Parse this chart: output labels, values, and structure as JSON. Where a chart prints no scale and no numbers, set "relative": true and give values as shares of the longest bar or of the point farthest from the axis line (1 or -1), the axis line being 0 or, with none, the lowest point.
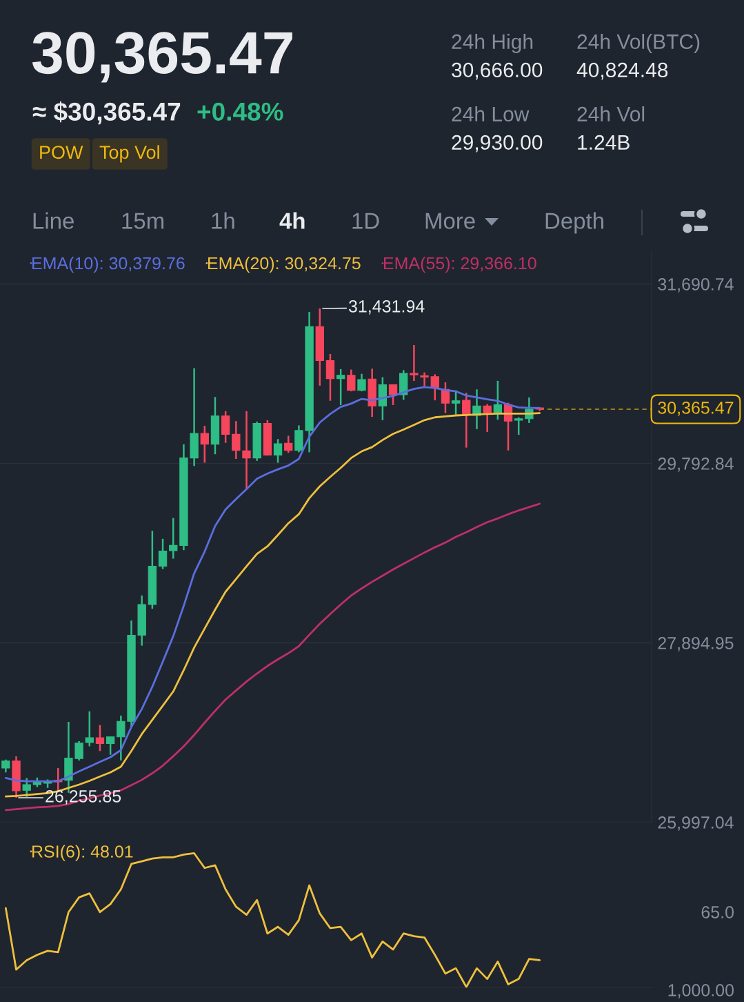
{
  "chart_data": [
    {
      "type": "other",
      "title": "30,365.47",
      "annotations": [
        "≈ $30,365.47",
        "+0.48%",
        "POW",
        "Top Vol",
        "24h High",
        "30,666.00",
        "24h Vol(BTC)",
        "40,824.48",
        "24h Low",
        "29,930.00",
        "24h Vol",
        "1.24B",
        "Line",
        "15m",
        "1h",
        "4h",
        "1D",
        "More",
        "Depth"
      ]
    },
    {
      "type": "candlestick",
      "categories": [
        null,
        null,
        null,
        null,
        null,
        null,
        null,
        null,
        null,
        null,
        null,
        null,
        null,
        null,
        null,
        null,
        null,
        null,
        null,
        null,
        null,
        null,
        null,
        null,
        null,
        null,
        null,
        null,
        null,
        null,
        null,
        null,
        null,
        null,
        null,
        null,
        null,
        null,
        null,
        null,
        null,
        null,
        null,
        null,
        null,
        null,
        null,
        null,
        null,
        null,
        null,
        null
      ],
      "ohlc": [
        [
          26570,
          26660,
          26525,
          26645
        ],
        [
          26645,
          26695,
          26255.85,
          26330
        ],
        [
          26335,
          26465,
          26265,
          26395
        ],
        [
          26395,
          26470,
          26370,
          26420
        ],
        [
          26410,
          26450,
          26360,
          26420
        ],
        [
          26440,
          26570,
          26325,
          26425
        ],
        [
          26440,
          27060,
          26310,
          26675
        ],
        [
          26670,
          26855,
          26650,
          26835
        ],
        [
          26840,
          27170,
          26800,
          26890
        ],
        [
          26890,
          27025,
          26750,
          26830
        ],
        [
          26830,
          26900,
          26710,
          26900
        ],
        [
          26900,
          27125,
          26650,
          27065
        ],
        [
          27065,
          28130,
          27005,
          27975
        ],
        [
          27975,
          28395,
          27865,
          28300
        ],
        [
          28300,
          29080,
          28255,
          28705
        ],
        [
          28705,
          28995,
          28675,
          28865
        ],
        [
          28870,
          29215,
          28785,
          28925
        ],
        [
          28925,
          29995,
          28875,
          29850
        ],
        [
          29850,
          30800,
          29765,
          30110
        ],
        [
          30110,
          30190,
          29800,
          29995
        ],
        [
          29995,
          30495,
          29890,
          30295
        ],
        [
          30295,
          30345,
          30010,
          30100
        ],
        [
          30100,
          30240,
          29840,
          29930
        ],
        [
          29925,
          30345,
          29525,
          29850
        ],
        [
          29850,
          30235,
          29820,
          30215
        ],
        [
          30215,
          30250,
          29875,
          29880
        ],
        [
          29880,
          30050,
          29800,
          30000
        ],
        [
          30005,
          30085,
          29905,
          29930
        ],
        [
          29930,
          30195,
          29910,
          30140
        ],
        [
          30140,
          31395,
          29910,
          31240
        ],
        [
          31240,
          31431.94,
          30615,
          30880
        ],
        [
          30880,
          30950,
          30455,
          30690
        ],
        [
          30690,
          30790,
          30410,
          30725
        ],
        [
          30725,
          30785,
          30555,
          30565
        ],
        [
          30565,
          30740,
          30555,
          30680
        ],
        [
          30685,
          30795,
          30285,
          30400
        ],
        [
          30400,
          30705,
          30250,
          30625
        ],
        [
          30625,
          30630,
          30410,
          30520
        ],
        [
          30520,
          30780,
          30465,
          30745
        ],
        [
          30745,
          31045,
          30665,
          30730
        ],
        [
          30720,
          30755,
          30610,
          30705
        ],
        [
          30710,
          30735,
          30460,
          30590
        ],
        [
          30575,
          30650,
          30325,
          30430
        ],
        [
          30430,
          30565,
          30310,
          30455
        ],
        [
          30460,
          30540,
          29960,
          30310
        ],
        [
          30300,
          30575,
          30155,
          30400
        ],
        [
          30400,
          30420,
          30125,
          30330
        ],
        [
          30330,
          30666,
          30255,
          30415
        ],
        [
          30415,
          30435,
          29930,
          30240
        ],
        [
          30250,
          30280,
          30095,
          30265
        ],
        [
          30265,
          30490,
          30220,
          30365
        ],
        [
          30380,
          30385,
          30345,
          30365.47
        ]
      ],
      "colors": [
        "#2ebd85",
        "#f6465d",
        "#2ebd85",
        "#2ebd85",
        "#2ebd85",
        "#f6465d",
        "#2ebd85",
        "#2ebd85",
        "#2ebd85",
        "#f6465d",
        "#2ebd85",
        "#2ebd85",
        "#2ebd85",
        "#2ebd85",
        "#2ebd85",
        "#2ebd85",
        "#2ebd85",
        "#2ebd85",
        "#2ebd85",
        "#f6465d",
        "#2ebd85",
        "#f6465d",
        "#f6465d",
        "#f6465d",
        "#2ebd85",
        "#f6465d",
        "#2ebd85",
        "#f6465d",
        "#2ebd85",
        "#2ebd85",
        "#f6465d",
        "#f6465d",
        "#2ebd85",
        "#f6465d",
        "#2ebd85",
        "#f6465d",
        "#2ebd85",
        "#f6465d",
        "#2ebd85",
        "#f6465d",
        "#f6465d",
        "#f6465d",
        "#f6465d",
        "#2ebd85",
        "#f6465d",
        "#2ebd85",
        "#f6465d",
        "#2ebd85",
        "#f6465d",
        "#2ebd85",
        "#2ebd85",
        "#f6465d"
      ],
      "series": [
        {
          "type": "line",
          "name": "EMA(10): 30,379.76",
          "color": "#5b6ee1",
          "values": [
            26465,
            26440,
            26430,
            26430,
            26430,
            26430,
            26480,
            26535,
            26585,
            26635,
            26685,
            26760,
            27005,
            27195,
            27430,
            27695,
            27965,
            28285,
            28630,
            28860,
            29130,
            29305,
            29415,
            29520,
            29630,
            29685,
            29730,
            29770,
            29840,
            30075,
            30225,
            30315,
            30390,
            30425,
            30475,
            30460,
            30485,
            30505,
            30545,
            30580,
            30600,
            30590,
            30570,
            30555,
            30510,
            30490,
            30470,
            30455,
            30415,
            30385,
            30380,
            30379.76
          ]
        },
        {
          "type": "line",
          "name": "EMA(20): 30,324.75",
          "color": "#efc03e",
          "values": [
            26270,
            26275,
            26285,
            26295,
            26305,
            26325,
            26360,
            26395,
            26435,
            26480,
            26525,
            26585,
            26750,
            26930,
            27080,
            27230,
            27380,
            27605,
            27845,
            28045,
            28245,
            28435,
            28570,
            28705,
            28835,
            28915,
            29035,
            29160,
            29255,
            29425,
            29550,
            29650,
            29745,
            29850,
            29920,
            29965,
            30040,
            30105,
            30150,
            30200,
            30250,
            30280,
            30290,
            30300,
            30305,
            30310,
            30315,
            30320,
            30320,
            30320,
            30320,
            30324.75
          ]
        },
        {
          "type": "line",
          "name": "EMA(55): 29,366.10",
          "color": "#bf2f68",
          "values": [
            26125,
            26135,
            26145,
            26155,
            26160,
            26170,
            26190,
            26225,
            26250,
            26280,
            26305,
            26335,
            26390,
            26445,
            26515,
            26595,
            26695,
            26800,
            26920,
            27050,
            27175,
            27295,
            27390,
            27485,
            27570,
            27650,
            27720,
            27785,
            27860,
            27980,
            28095,
            28200,
            28300,
            28395,
            28470,
            28540,
            28605,
            28670,
            28730,
            28790,
            28850,
            28905,
            28955,
            29015,
            29065,
            29120,
            29170,
            29210,
            29255,
            29295,
            29330,
            29366.1
          ]
        }
      ],
      "ylim": [
        25997.04,
        32030
      ],
      "yticks": [
        {
          "value": 25997.04,
          "label": "25,997.04"
        },
        {
          "value": 27894.95,
          "label": "27,894.95"
        },
        {
          "value": 29792.84,
          "label": "29,792.84"
        },
        {
          "value": 31690.74,
          "label": "31,690.74"
        }
      ],
      "tick_labels": "y",
      "grid": "y",
      "legend": "top left",
      "annotations": [
        "31,431.94",
        "26,255.85"
      ],
      "ref_lines": [
        {
          "axis": "y",
          "value": 30365.47,
          "label": "30,365.47",
          "color": "#f0b90b",
          "line_style": "dashed"
        }
      ]
    },
    {
      "type": "line",
      "relative": true,
      "categories": [
        null,
        null,
        null,
        null,
        null,
        null,
        null,
        null,
        null,
        null,
        null,
        null,
        null,
        null,
        null,
        null,
        null,
        null,
        null,
        null,
        null,
        null,
        null,
        null,
        null,
        null,
        null,
        null,
        null,
        null,
        null,
        null,
        null,
        null,
        null,
        null,
        null,
        null,
        null,
        null,
        null,
        null,
        null,
        null,
        null,
        null,
        null,
        null,
        null,
        null,
        null,
        null
      ],
      "series": [
        {
          "name": "RSI(6): 48.01",
          "color": "#efc03e",
          "values": [
            0.59,
            0.13,
            0.2,
            0.24,
            0.27,
            0.26,
            0.56,
            0.67,
            0.7,
            0.56,
            0.62,
            0.73,
            0.92,
            0.94,
            0.96,
            0.97,
            0.97,
            0.99,
            1.0,
            0.89,
            0.91,
            0.73,
            0.6,
            0.54,
            0.65,
            0.4,
            0.45,
            0.39,
            0.5,
            0.76,
            0.55,
            0.44,
            0.45,
            0.35,
            0.4,
            0.22,
            0.34,
            0.28,
            0.4,
            0.38,
            0.37,
            0.24,
            0.1,
            0.14,
            0,
            0.14,
            0.06,
            0.19,
            0.02,
            0.06,
            0.21,
            0.2
          ]
        }
      ],
      "legend": "top left",
      "annotations": [
        "65.0",
        "1,000.00"
      ]
    }
  ]
}
